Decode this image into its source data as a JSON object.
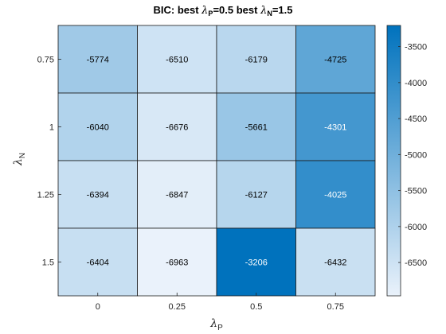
{
  "chart_data": {
    "type": "heatmap",
    "title": {
      "prefix": "BIC: best ",
      "lambda": "λ",
      "sub_p": "P",
      "mid": "=0.5 best  ",
      "sub_n": "N",
      "suffix": "=1.5"
    },
    "xlabel": {
      "symbol": "λ",
      "sub": "P"
    },
    "ylabel": {
      "symbol": "λ",
      "sub": "N"
    },
    "x_categories": [
      "0",
      "0.25",
      "0.5",
      "0.75"
    ],
    "y_categories": [
      "0.75",
      "1",
      "1.25",
      "1.5"
    ],
    "values": [
      [
        -5774,
        -6510,
        -6179,
        -4725
      ],
      [
        -6040,
        -6676,
        -5661,
        -4301
      ],
      [
        -6394,
        -6847,
        -6127,
        -4025
      ],
      [
        -6404,
        -6963,
        -3206,
        -6432
      ]
    ],
    "colorbar": {
      "range": [
        -6963,
        -3206
      ],
      "ticks": [
        -6500,
        -6000,
        -5500,
        -5000,
        -4500,
        -4000,
        -3500
      ],
      "tick_labels": [
        "-6500",
        "-6000",
        "-5500",
        "-5000",
        "-4500",
        "-4000",
        "-3500"
      ]
    },
    "colormap": {
      "low": "#eaf2fb",
      "high": "#0072bd"
    }
  }
}
